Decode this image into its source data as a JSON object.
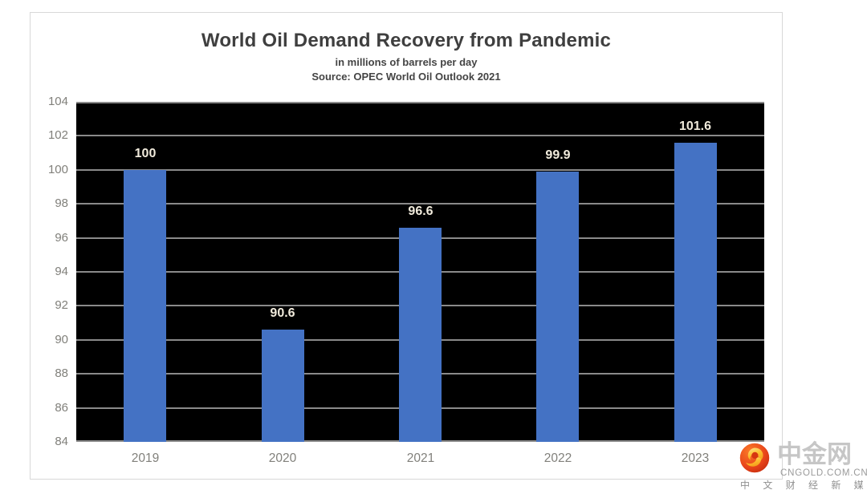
{
  "chart_data": {
    "type": "bar",
    "title": "World Oil Demand Recovery from Pandemic",
    "subtitle": "in millions of barrels per day",
    "source": "Source: OPEC World Oil Outlook 2021",
    "categories": [
      "2019",
      "2020",
      "2021",
      "2022",
      "2023"
    ],
    "values": [
      100,
      90.6,
      96.6,
      99.9,
      101.6
    ],
    "data_labels": [
      "100",
      "90.6",
      "96.6",
      "99.9",
      "101.6"
    ],
    "xlabel": "",
    "ylabel": "",
    "ylim": [
      84,
      104
    ],
    "ytick_step": 2,
    "yticks": [
      "84",
      "86",
      "88",
      "90",
      "92",
      "94",
      "96",
      "98",
      "100",
      "102",
      "104"
    ],
    "grid": true,
    "legend": false,
    "colors": {
      "bar": "#4472c4",
      "plot_background": "#000000",
      "gridline": "#8a8a8a",
      "data_label": "#f1ebdc",
      "axis_label": "#81807b",
      "title": "#3f3f3f"
    }
  },
  "watermark": {
    "brand": "中金网",
    "domain": "CNGOLD.COM.CN",
    "tagline": "中 文 财 经 新 媒 体",
    "colors": {
      "logo_orange": "#f4641e",
      "logo_red": "#c2270f",
      "logo_gold": "#fdc031",
      "brand_text": "#c6c6c6"
    }
  }
}
